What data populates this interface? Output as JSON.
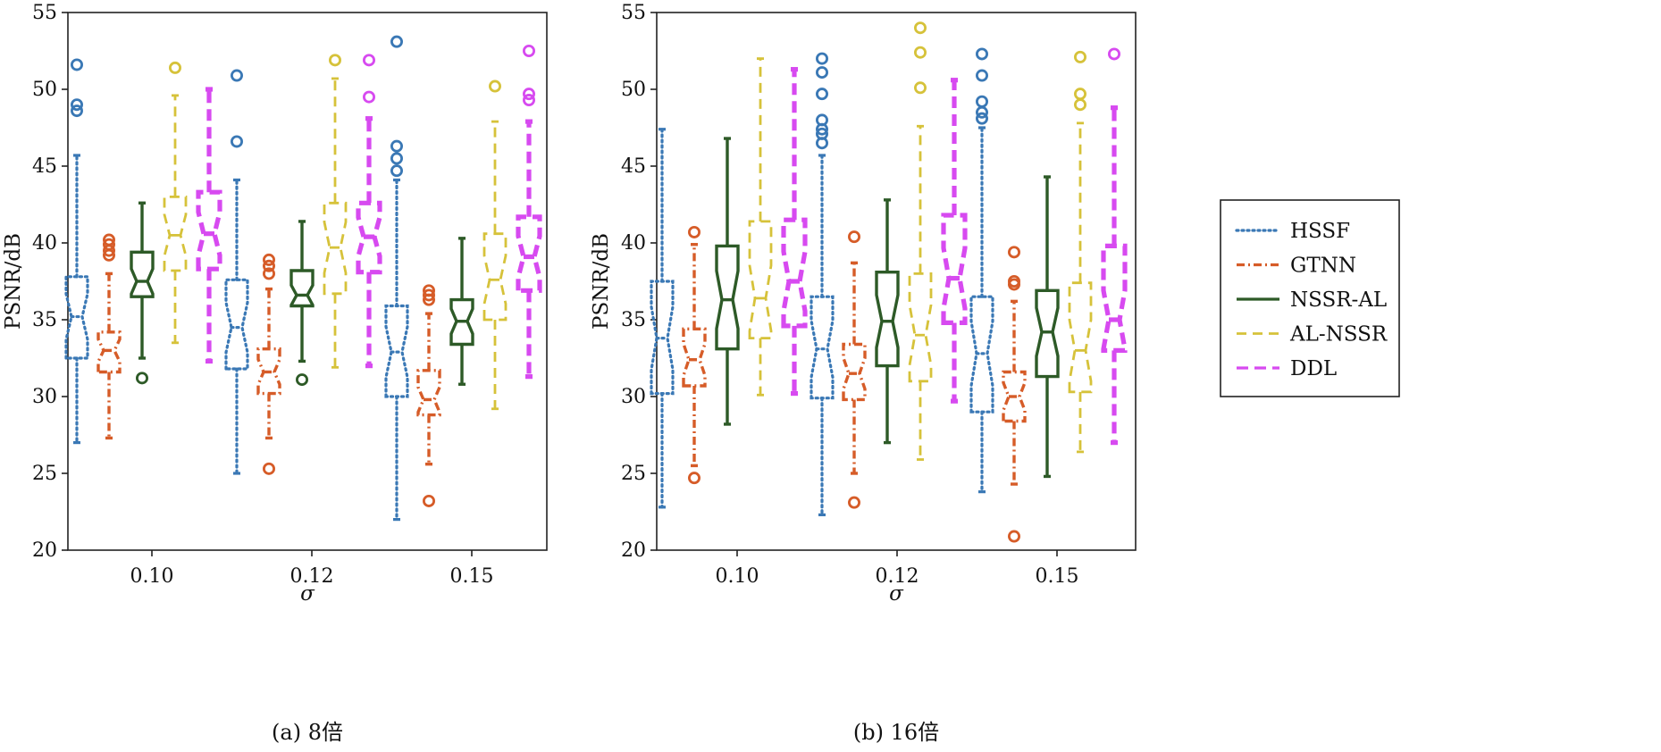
{
  "chart_data": [
    {
      "type": "boxplot",
      "notched": true,
      "caption": "(a) 8倍",
      "xlabel": "σ",
      "ylabel": "PSNR/dB",
      "ylim": [
        20,
        55
      ],
      "yticks": [
        20,
        25,
        30,
        35,
        40,
        45,
        50,
        55
      ],
      "categories": [
        "0.10",
        "0.12",
        "0.15"
      ],
      "series": [
        {
          "name": "HSSF",
          "boxes": [
            {
              "whislo": 27.0,
              "q1": 32.5,
              "med": 35.2,
              "q3": 37.8,
              "whishi": 45.7,
              "fliers": [
                48.6,
                49.0,
                51.6
              ]
            },
            {
              "whislo": 25.0,
              "q1": 31.8,
              "med": 34.5,
              "q3": 37.6,
              "whishi": 44.1,
              "fliers": [
                46.6,
                50.9
              ]
            },
            {
              "whislo": 22.0,
              "q1": 30.0,
              "med": 32.9,
              "q3": 35.9,
              "whishi": 44.1,
              "fliers": [
                44.7,
                45.5,
                46.3,
                53.1
              ]
            }
          ]
        },
        {
          "name": "GTNN",
          "boxes": [
            {
              "whislo": 27.3,
              "q1": 31.6,
              "med": 33.0,
              "q3": 34.2,
              "whishi": 38.0,
              "fliers": [
                39.2,
                39.5,
                39.9,
                40.2
              ]
            },
            {
              "whislo": 27.3,
              "q1": 30.2,
              "med": 31.6,
              "q3": 33.1,
              "whishi": 37.0,
              "fliers": [
                25.3,
                38.0,
                38.5,
                38.9
              ]
            },
            {
              "whislo": 25.6,
              "q1": 28.8,
              "med": 29.8,
              "q3": 31.7,
              "whishi": 35.4,
              "fliers": [
                23.2,
                36.3,
                36.6,
                36.9
              ]
            }
          ]
        },
        {
          "name": "NSSR-AL",
          "boxes": [
            {
              "whislo": 32.5,
              "q1": 36.5,
              "med": 37.5,
              "q3": 39.4,
              "whishi": 42.6,
              "fliers": [
                31.2
              ]
            },
            {
              "whislo": 32.3,
              "q1": 35.9,
              "med": 36.6,
              "q3": 38.2,
              "whishi": 41.4,
              "fliers": [
                31.1
              ]
            },
            {
              "whislo": 30.8,
              "q1": 33.4,
              "med": 34.9,
              "q3": 36.3,
              "whishi": 40.3,
              "fliers": []
            }
          ]
        },
        {
          "name": "AL-NSSR",
          "boxes": [
            {
              "whislo": 33.5,
              "q1": 38.2,
              "med": 40.5,
              "q3": 43.0,
              "whishi": 49.6,
              "fliers": [
                51.4
              ]
            },
            {
              "whislo": 31.9,
              "q1": 36.7,
              "med": 39.7,
              "q3": 42.6,
              "whishi": 50.7,
              "fliers": [
                51.9
              ]
            },
            {
              "whislo": 29.2,
              "q1": 35.0,
              "med": 37.6,
              "q3": 40.6,
              "whishi": 47.9,
              "fliers": [
                50.2
              ]
            }
          ]
        },
        {
          "name": "DDL",
          "boxes": [
            {
              "whislo": 32.3,
              "q1": 38.3,
              "med": 40.6,
              "q3": 43.3,
              "whishi": 50.0,
              "fliers": []
            },
            {
              "whislo": 32.0,
              "q1": 38.1,
              "med": 40.4,
              "q3": 42.6,
              "whishi": 48.1,
              "fliers": [
                49.5,
                51.9
              ]
            },
            {
              "whislo": 31.3,
              "q1": 36.9,
              "med": 39.1,
              "q3": 41.7,
              "whishi": 47.9,
              "fliers": [
                49.3,
                49.7,
                52.5
              ]
            }
          ]
        }
      ]
    },
    {
      "type": "boxplot",
      "notched": true,
      "caption": "(b) 16倍",
      "xlabel": "σ",
      "ylabel": "PSNR/dB",
      "ylim": [
        20,
        55
      ],
      "yticks": [
        20,
        25,
        30,
        35,
        40,
        45,
        50,
        55
      ],
      "categories": [
        "0.10",
        "0.12",
        "0.15"
      ],
      "series": [
        {
          "name": "HSSF",
          "boxes": [
            {
              "whislo": 22.8,
              "q1": 30.2,
              "med": 33.8,
              "q3": 37.5,
              "whishi": 47.4,
              "fliers": []
            },
            {
              "whislo": 22.3,
              "q1": 29.9,
              "med": 33.1,
              "q3": 36.5,
              "whishi": 45.7,
              "fliers": [
                46.5,
                47.1,
                47.4,
                48.0,
                49.7,
                51.1,
                52.0
              ]
            },
            {
              "whislo": 23.8,
              "q1": 29.0,
              "med": 32.8,
              "q3": 36.5,
              "whishi": 47.5,
              "fliers": [
                48.1,
                48.5,
                49.2,
                50.9,
                52.3
              ]
            }
          ]
        },
        {
          "name": "GTNN",
          "boxes": [
            {
              "whislo": 25.5,
              "q1": 30.7,
              "med": 32.4,
              "q3": 34.4,
              "whishi": 39.9,
              "fliers": [
                24.7,
                40.7
              ]
            },
            {
              "whislo": 25.0,
              "q1": 29.8,
              "med": 31.5,
              "q3": 33.4,
              "whishi": 38.7,
              "fliers": [
                23.1,
                40.4
              ]
            },
            {
              "whislo": 24.3,
              "q1": 28.4,
              "med": 30.0,
              "q3": 31.6,
              "whishi": 36.2,
              "fliers": [
                20.9,
                37.3,
                37.5,
                39.4
              ]
            }
          ]
        },
        {
          "name": "NSSR-AL",
          "boxes": [
            {
              "whislo": 28.2,
              "q1": 33.1,
              "med": 36.3,
              "q3": 39.8,
              "whishi": 46.8,
              "fliers": []
            },
            {
              "whislo": 27.0,
              "q1": 32.0,
              "med": 34.9,
              "q3": 38.1,
              "whishi": 42.8,
              "fliers": []
            },
            {
              "whislo": 24.8,
              "q1": 31.3,
              "med": 34.2,
              "q3": 36.9,
              "whishi": 44.3,
              "fliers": []
            }
          ]
        },
        {
          "name": "AL-NSSR",
          "boxes": [
            {
              "whislo": 30.1,
              "q1": 33.8,
              "med": 36.4,
              "q3": 41.4,
              "whishi": 52.0,
              "fliers": []
            },
            {
              "whislo": 25.9,
              "q1": 31.0,
              "med": 34.0,
              "q3": 38.0,
              "whishi": 47.6,
              "fliers": [
                50.1,
                52.4,
                54.0
              ]
            },
            {
              "whislo": 26.4,
              "q1": 30.3,
              "med": 33.0,
              "q3": 37.4,
              "whishi": 47.8,
              "fliers": [
                49.0,
                49.7,
                52.1
              ]
            }
          ]
        },
        {
          "name": "DDL",
          "boxes": [
            {
              "whislo": 30.2,
              "q1": 34.6,
              "med": 37.5,
              "q3": 41.5,
              "whishi": 51.3,
              "fliers": []
            },
            {
              "whislo": 29.7,
              "q1": 34.8,
              "med": 37.7,
              "q3": 41.8,
              "whishi": 50.6,
              "fliers": []
            },
            {
              "whislo": 27.0,
              "q1": 33.0,
              "med": 35.0,
              "q3": 39.8,
              "whishi": 48.8,
              "fliers": [
                52.3
              ]
            }
          ]
        }
      ]
    }
  ],
  "legend": {
    "placement": "right",
    "entries": [
      {
        "name": "HSSF",
        "color": "#3a78b5",
        "line_style": "dotted"
      },
      {
        "name": "GTNN",
        "color": "#d65c28",
        "line_style": "dash-dot"
      },
      {
        "name": "NSSR-AL",
        "color": "#2d5a27",
        "line_style": "solid"
      },
      {
        "name": "AL-NSSR",
        "color": "#d6c23a",
        "line_style": "dashed"
      },
      {
        "name": "DDL",
        "color": "#d74af0",
        "line_style": "dashed-thick"
      }
    ]
  }
}
